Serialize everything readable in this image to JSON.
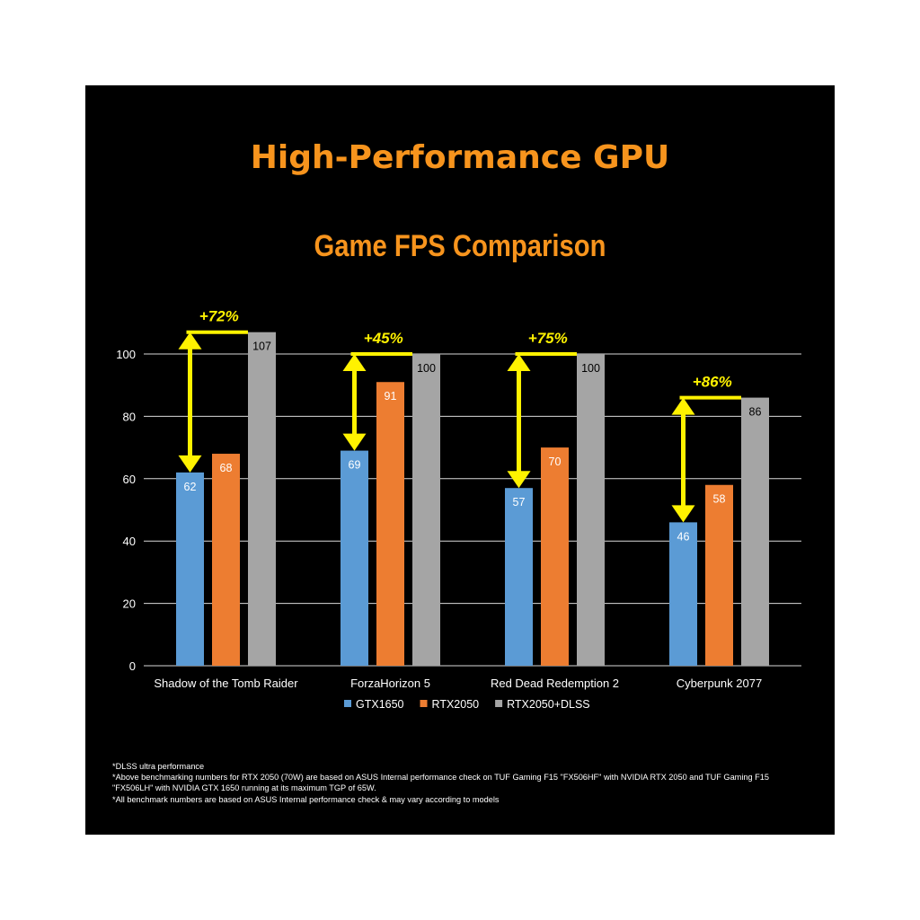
{
  "title": "High-Performance GPU",
  "subtitle": "Game FPS Comparison",
  "colors": {
    "background": "#000000",
    "title": "#F7941D",
    "arrow": "#FFF200",
    "GTX1650": "#5B9BD5",
    "RTX2050": "#ED7D31",
    "RTX2050+DLSS": "#A5A5A5",
    "axis_text": "#ffffff",
    "grid": "#d9d9d9"
  },
  "chart_data": {
    "type": "bar",
    "categories": [
      "Shadow of the Tomb Raider",
      "ForzaHorizon 5",
      "Red Dead Redemption 2",
      "Cyberpunk 2077"
    ],
    "series": [
      {
        "name": "GTX1650",
        "values": [
          62,
          69,
          57,
          46
        ]
      },
      {
        "name": "RTX2050",
        "values": [
          68,
          91,
          70,
          58
        ]
      },
      {
        "name": "RTX2050+DLSS",
        "values": [
          107,
          100,
          100,
          86
        ]
      }
    ],
    "ylim": [
      0,
      100
    ],
    "yticks": [
      0,
      20,
      40,
      60,
      80,
      100
    ],
    "grid": true,
    "legend_position": "bottom",
    "annotations": [
      "+72%",
      "+45%",
      "+75%",
      "+86%"
    ]
  },
  "footnotes": [
    "*DLSS ultra performance",
    "*Above benchmarking numbers for RTX 2050 (70W) are based on ASUS Internal performance check on TUF Gaming F15 \"FX506HF\" with NVIDIA RTX 2050 and TUF Gaming F15",
    "\"FX506LH\" with NVIDIA GTX 1650 running at its maximum TGP of 65W.",
    "*All benchmark numbers are based on ASUS Internal performance check & may vary according to models"
  ]
}
